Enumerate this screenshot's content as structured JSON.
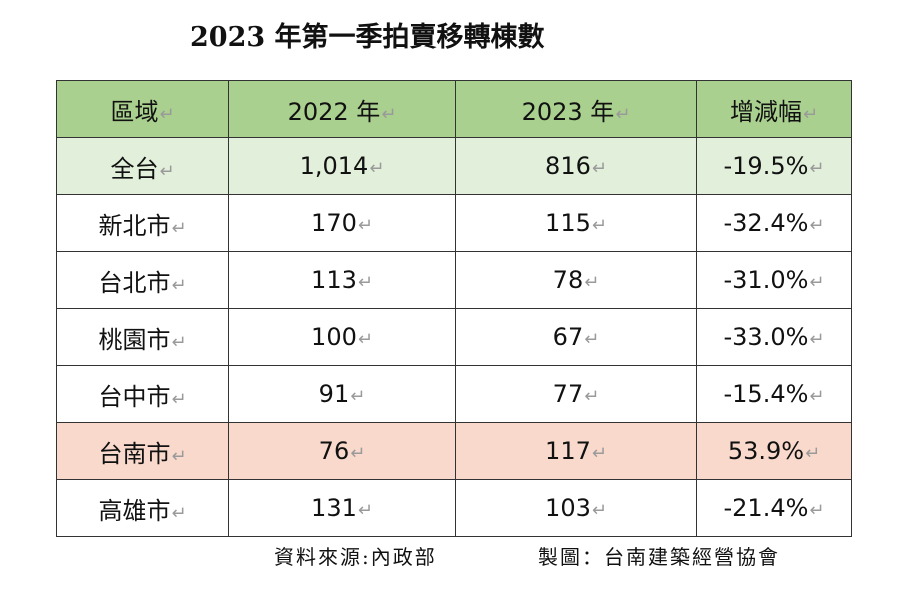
{
  "title": "2023 年第一季拍賣移轉棟數",
  "para_mark": "↵",
  "table": {
    "headers": [
      "區域",
      "2022 年",
      "2023 年",
      "增減幅"
    ],
    "rows": [
      [
        "全台",
        "1,014",
        "816",
        "-19.5%"
      ],
      [
        "新北市",
        "170",
        "115",
        "-32.4%"
      ],
      [
        "台北市",
        "113",
        "78",
        "-31.0%"
      ],
      [
        "桃園市",
        "100",
        "67",
        "-33.0%"
      ],
      [
        "台中市",
        "91",
        "77",
        "-15.4%"
      ],
      [
        "台南市",
        "76",
        "117",
        "53.9%"
      ],
      [
        "高雄市",
        "131",
        "103",
        "-21.4%"
      ]
    ]
  },
  "colors": {
    "header_bg": "#a9d08e",
    "total_row_bg": "#e2efda",
    "highlight_row_bg": "#f8d9cc"
  },
  "footer": {
    "source": "資料來源:內政部",
    "credit": "製圖：台南建築經營協會"
  }
}
